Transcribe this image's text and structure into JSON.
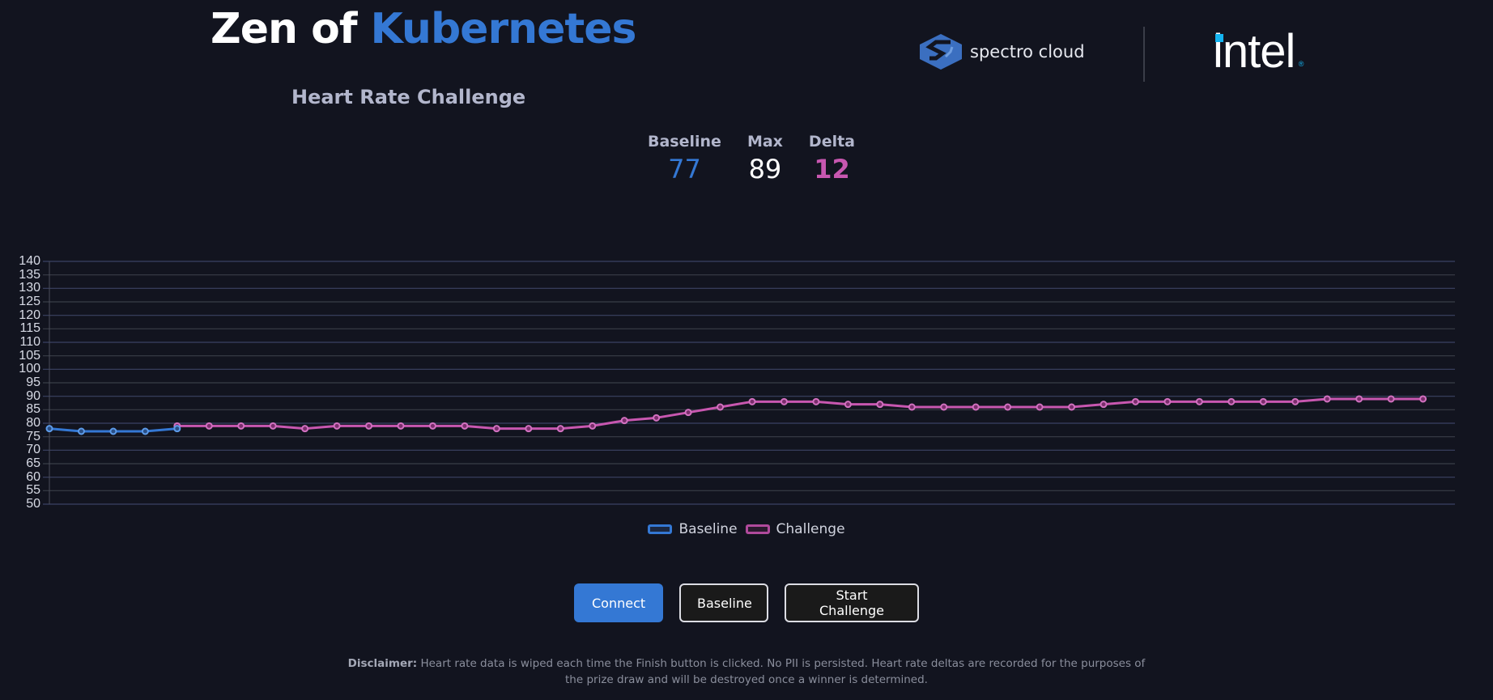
{
  "header": {
    "title_plain": "Zen of ",
    "title_accent": "Kubernetes",
    "subtitle": "Heart Rate Challenge",
    "logos": {
      "spectro": "spectro cloud",
      "intel": "intel"
    }
  },
  "stats": {
    "baseline": {
      "label": "Baseline",
      "value": "77"
    },
    "max": {
      "label": "Max",
      "value": "89"
    },
    "delta": {
      "label": "Delta",
      "value": "12"
    }
  },
  "legend": {
    "baseline": "Baseline",
    "challenge": "Challenge"
  },
  "buttons": {
    "connect": "Connect",
    "baseline": "Baseline",
    "start_challenge": "Start Challenge"
  },
  "disclaimer": {
    "label": "Disclaimer:",
    "text": " Heart rate data is wiped each time the Finish button is clicked. No PII is persisted. Heart rate deltas are recorded for the purposes of the prize draw and will be destroyed once a winner is determined."
  },
  "colors": {
    "background": "#12141f",
    "accent_blue": "#3478d4",
    "challenge_magenta": "#c857b0",
    "grid_blue": "#3b4263",
    "grid_gray": "#3a3d48"
  },
  "chart_data": {
    "type": "line",
    "title": "Heart Rate Challenge",
    "xlabel": "",
    "ylabel": "",
    "ylim": [
      50,
      140
    ],
    "yticks": [
      140,
      135,
      130,
      125,
      120,
      115,
      110,
      105,
      100,
      95,
      90,
      85,
      80,
      75,
      70,
      65,
      60,
      55,
      50
    ],
    "grid": true,
    "legend_position": "bottom",
    "x": [
      0,
      1,
      2,
      3,
      4,
      5,
      6,
      7,
      8,
      9,
      10,
      11,
      12,
      13,
      14,
      15,
      16,
      17,
      18,
      19,
      20,
      21,
      22,
      23,
      24,
      25,
      26,
      27,
      28,
      29,
      30,
      31,
      32,
      33,
      34,
      35,
      36,
      37,
      38,
      39,
      40,
      41,
      42,
      43,
      44
    ],
    "series": [
      {
        "name": "Baseline",
        "color": "#3478d4",
        "start_index": 0,
        "values": [
          78,
          77,
          77,
          77,
          78
        ]
      },
      {
        "name": "Challenge",
        "color": "#c857b0",
        "start_index": 4,
        "values": [
          79,
          79,
          79,
          79,
          78,
          79,
          79,
          79,
          79,
          79,
          78,
          78,
          78,
          79,
          81,
          82,
          84,
          86,
          88,
          88,
          88,
          87,
          87,
          86,
          86,
          86,
          86,
          86,
          86,
          87,
          88,
          88,
          88,
          88,
          88,
          88,
          89,
          89,
          89,
          89
        ]
      }
    ]
  }
}
